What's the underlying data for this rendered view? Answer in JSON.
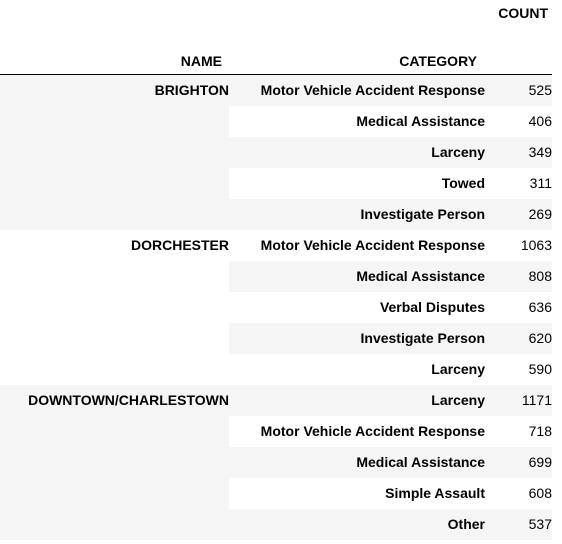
{
  "table": {
    "headers": {
      "count": "COUNT",
      "name": "NAME",
      "category": "CATEGORY"
    },
    "groups": [
      {
        "name": "BRIGHTON",
        "rows": [
          {
            "category": "Motor Vehicle Accident Response",
            "count": "525"
          },
          {
            "category": "Medical Assistance",
            "count": "406"
          },
          {
            "category": "Larceny",
            "count": "349"
          },
          {
            "category": "Towed",
            "count": "311"
          },
          {
            "category": "Investigate Person",
            "count": "269"
          }
        ]
      },
      {
        "name": "DORCHESTER",
        "rows": [
          {
            "category": "Motor Vehicle Accident Response",
            "count": "1063"
          },
          {
            "category": "Medical Assistance",
            "count": "808"
          },
          {
            "category": "Verbal Disputes",
            "count": "636"
          },
          {
            "category": "Investigate Person",
            "count": "620"
          },
          {
            "category": "Larceny",
            "count": "590"
          }
        ]
      },
      {
        "name": "DOWNTOWN/CHARLESTOWN",
        "rows": [
          {
            "category": "Larceny",
            "count": "1171"
          },
          {
            "category": "Motor Vehicle Accident Response",
            "count": "718"
          },
          {
            "category": "Medical Assistance",
            "count": "699"
          },
          {
            "category": "Simple Assault",
            "count": "608"
          },
          {
            "category": "Other",
            "count": "537"
          }
        ]
      }
    ],
    "colors": {
      "stripe": "#f5f5f5",
      "header_rule": "#000000"
    }
  }
}
